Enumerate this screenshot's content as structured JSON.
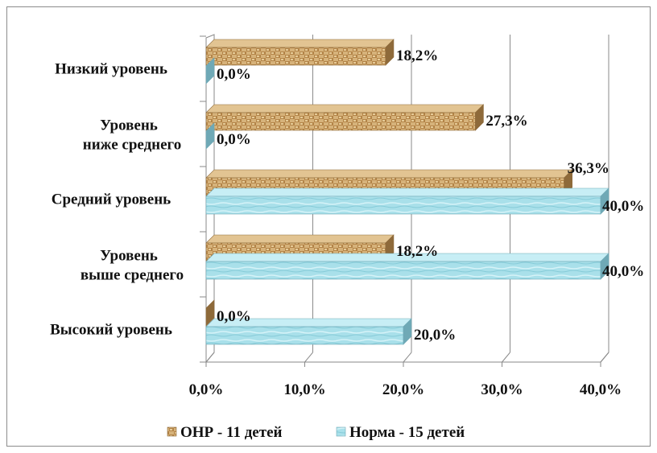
{
  "chart_data": {
    "type": "bar",
    "orientation": "horizontal",
    "three_d": true,
    "categories": [
      "Низкий уровень",
      "Уровень ниже среднего",
      "Средний уровень",
      "Уровень выше среднего",
      "Высокий уровень"
    ],
    "category_lines": [
      [
        "Низкий уровень"
      ],
      [
        "Уровень",
        "ниже среднего"
      ],
      [
        "Средний уровень"
      ],
      [
        "Уровень",
        "выше среднего"
      ],
      [
        "Высокий уровень"
      ]
    ],
    "series": [
      {
        "name": "ОНР - 11 детей",
        "values": [
          18.2,
          27.3,
          36.3,
          18.2,
          0.0
        ],
        "labels": [
          "18,2%",
          "27,3%",
          "36,3%",
          "18,2%",
          "0,0%"
        ],
        "color": "#c9a46c"
      },
      {
        "name": "Норма - 15 детей",
        "values": [
          0.0,
          0.0,
          40.0,
          40.0,
          20.0
        ],
        "labels": [
          "0,0%",
          "0,0%",
          "40,0%",
          "40,0%",
          "20,0%"
        ],
        "color": "#a8dfe9"
      }
    ],
    "x_ticks": [
      "0,0%",
      "10,0%",
      "20,0%",
      "30,0%",
      "40,0%"
    ],
    "xlim": [
      0,
      40
    ],
    "grid": true,
    "legend_position": "bottom"
  }
}
